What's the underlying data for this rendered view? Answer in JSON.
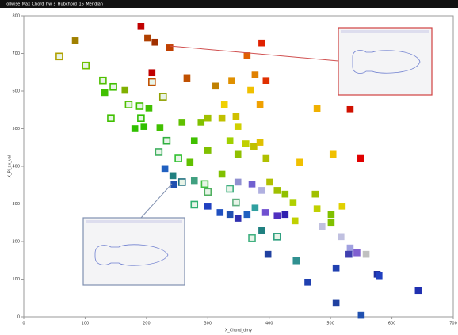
{
  "chart_data": {
    "type": "scatter",
    "title": "Tollwise_Max_Chord_hw_s_Hubchord_16_Meridian",
    "xlabel": "X_Chord_dmy",
    "ylabel": "X_Pi_ax_val",
    "xlim": [
      0,
      700
    ],
    "xticks": [
      0,
      100,
      200,
      300,
      400,
      500,
      600,
      700
    ],
    "ylim": [
      0,
      800
    ],
    "yticks": [
      0,
      100,
      200,
      300,
      400,
      500,
      600,
      700,
      800
    ],
    "x": [
      58,
      84,
      101,
      191,
      202,
      214,
      238,
      388,
      364,
      209,
      266,
      209,
      129,
      146,
      132,
      165,
      227,
      313,
      339,
      377,
      395,
      370,
      385,
      327,
      171,
      189,
      204,
      142,
      191,
      196,
      181,
      222,
      258,
      289,
      300,
      323,
      346,
      349,
      478,
      532,
      336,
      362,
      375,
      385,
      233,
      278,
      220,
      252,
      271,
      300,
      349,
      395,
      450,
      504,
      549,
      230,
      243,
      245,
      258,
      278,
      295,
      300,
      323,
      336,
      349,
      372,
      388,
      401,
      413,
      426,
      439,
      475,
      478,
      501,
      519,
      278,
      300,
      320,
      336,
      349,
      364,
      377,
      394,
      413,
      426,
      442,
      346,
      372,
      388,
      413,
      486,
      501,
      517,
      532,
      543,
      558,
      530,
      444,
      398,
      576,
      579,
      509,
      463,
      509,
      550,
      643
    ],
    "values": [
      692,
      734,
      668,
      772,
      741,
      730,
      715,
      728,
      694,
      649,
      634,
      624,
      628,
      611,
      596,
      602,
      585,
      613,
      628,
      643,
      628,
      602,
      564,
      564,
      564,
      560,
      555,
      528,
      528,
      506,
      500,
      502,
      517,
      517,
      528,
      528,
      532,
      506,
      553,
      551,
      468,
      460,
      453,
      464,
      468,
      468,
      438,
      421,
      411,
      443,
      432,
      421,
      411,
      432,
      421,
      394,
      375,
      351,
      358,
      362,
      353,
      332,
      379,
      340,
      358,
      353,
      336,
      358,
      336,
      326,
      304,
      326,
      287,
      272,
      294,
      298,
      294,
      277,
      272,
      262,
      272,
      289,
      277,
      268,
      272,
      255,
      304,
      209,
      230,
      213,
      240,
      251,
      213,
      183,
      170,
      166,
      166,
      149,
      166,
      113,
      109,
      130,
      92,
      36,
      4,
      70
    ],
    "colors": [
      "#b0a000",
      "#a08000",
      "#70c000",
      "#c00000",
      "#b04000",
      "#a03000",
      "#c04000",
      "#e02000",
      "#e06000",
      "#c00000",
      "#c05000",
      "#c05000",
      "#50c000",
      "#40c000",
      "#40c000",
      "#80b000",
      "#90a000",
      "#c08000",
      "#e09000",
      "#e08000",
      "#e03000",
      "#f0c000",
      "#f0a000",
      "#f0d000",
      "#50c000",
      "#40c000",
      "#40c000",
      "#40c000",
      "#30c000",
      "#30c000",
      "#30c000",
      "#40c000",
      "#60c000",
      "#80c000",
      "#a0c000",
      "#c0c000",
      "#d0c000",
      "#d0d000",
      "#f0b000",
      "#d01000",
      "#a0d000",
      "#c0d000",
      "#c0c000",
      "#e0c000",
      "#30b040",
      "#40c000",
      "#40b060",
      "#30c030",
      "#60c000",
      "#80c000",
      "#90c000",
      "#b0c000",
      "#f0c000",
      "#f0c000",
      "#e00000",
      "#2060c0",
      "#208080",
      "#2050b0",
      "#207080",
      "#40a080",
      "#40c040",
      "#50b060",
      "#80c000",
      "#40b080",
      "#9090d0",
      "#7060d0",
      "#b0b0e0",
      "#b0c000",
      "#a0c000",
      "#90c000",
      "#b0d000",
      "#a0c000",
      "#c0d000",
      "#80c000",
      "#e0d000",
      "#30b070",
      "#2040c0",
      "#2050c0",
      "#2050b0",
      "#3030b0",
      "#2060c0",
      "#30a0a0",
      "#7050d0",
      "#5030c0",
      "#3020b0",
      "#c0d000",
      "#60b080",
      "#40b080",
      "#208080",
      "#30a080",
      "#c0c0e0",
      "#80c000",
      "#c0c0e0",
      "#a0a0e0",
      "#8060d0",
      "#c0c0c0",
      "#4040b0",
      "#309090",
      "#2040a0",
      "#2030a0",
      "#2040c0",
      "#2040b0",
      "#2040b0",
      "#2040a0",
      "#2050b0",
      "#2030b0"
    ],
    "markers": [
      "hollow",
      "filled",
      "hollow",
      "filled",
      "filled",
      "filled",
      "filled",
      "filled",
      "filled",
      "filled",
      "filled",
      "hollow",
      "hollow",
      "hollow",
      "filled",
      "filled",
      "hollow",
      "filled",
      "filled",
      "filled",
      "filled",
      "filled",
      "filled",
      "filled",
      "hollow",
      "hollow",
      "filled",
      "hollow",
      "hollow",
      "filled",
      "filled",
      "filled",
      "filled",
      "filled",
      "filled",
      "filled",
      "filled",
      "filled",
      "filled",
      "filled",
      "filled",
      "filled",
      "filled",
      "filled",
      "hollow",
      "filled",
      "hollow",
      "hollow",
      "filled",
      "filled",
      "filled",
      "filled",
      "filled",
      "filled",
      "filled",
      "filled",
      "filled",
      "filled",
      "hollow",
      "filled",
      "hollow",
      "hollow",
      "filled",
      "hollow",
      "filled",
      "filled",
      "filled",
      "filled",
      "filled",
      "filled",
      "filled",
      "filled",
      "filled",
      "filled",
      "filled",
      "hollow",
      "filled",
      "filled",
      "filled",
      "filled",
      "filled",
      "filled",
      "filled",
      "filled",
      "filled",
      "filled",
      "hollow",
      "hollow",
      "filled",
      "hollow",
      "filled",
      "filled",
      "filled",
      "filled",
      "filled",
      "filled",
      "filled",
      "filled",
      "filled",
      "filled",
      "filled",
      "filled",
      "filled",
      "filled",
      "filled",
      "filled"
    ],
    "grid": false
  }
}
